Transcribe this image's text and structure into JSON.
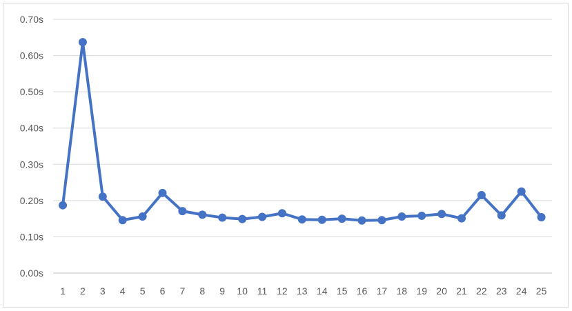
{
  "chart_data": {
    "type": "line",
    "title": "",
    "xlabel": "",
    "ylabel": "",
    "categories": [
      "1",
      "2",
      "3",
      "4",
      "5",
      "6",
      "7",
      "8",
      "9",
      "10",
      "11",
      "12",
      "13",
      "14",
      "15",
      "16",
      "17",
      "18",
      "19",
      "20",
      "21",
      "22",
      "23",
      "24",
      "25"
    ],
    "series": [
      {
        "values": [
          0.187,
          0.637,
          0.211,
          0.146,
          0.156,
          0.221,
          0.171,
          0.161,
          0.153,
          0.149,
          0.155,
          0.165,
          0.148,
          0.147,
          0.15,
          0.145,
          0.146,
          0.156,
          0.158,
          0.163,
          0.151,
          0.215,
          0.159,
          0.225,
          0.154
        ],
        "color": "#4472c4"
      }
    ],
    "ylim": [
      0,
      0.7
    ],
    "yticks": [
      "0.00s",
      "0.10s",
      "0.20s",
      "0.30s",
      "0.40s",
      "0.50s",
      "0.60s",
      "0.70s"
    ],
    "grid": true,
    "legend": "none"
  }
}
